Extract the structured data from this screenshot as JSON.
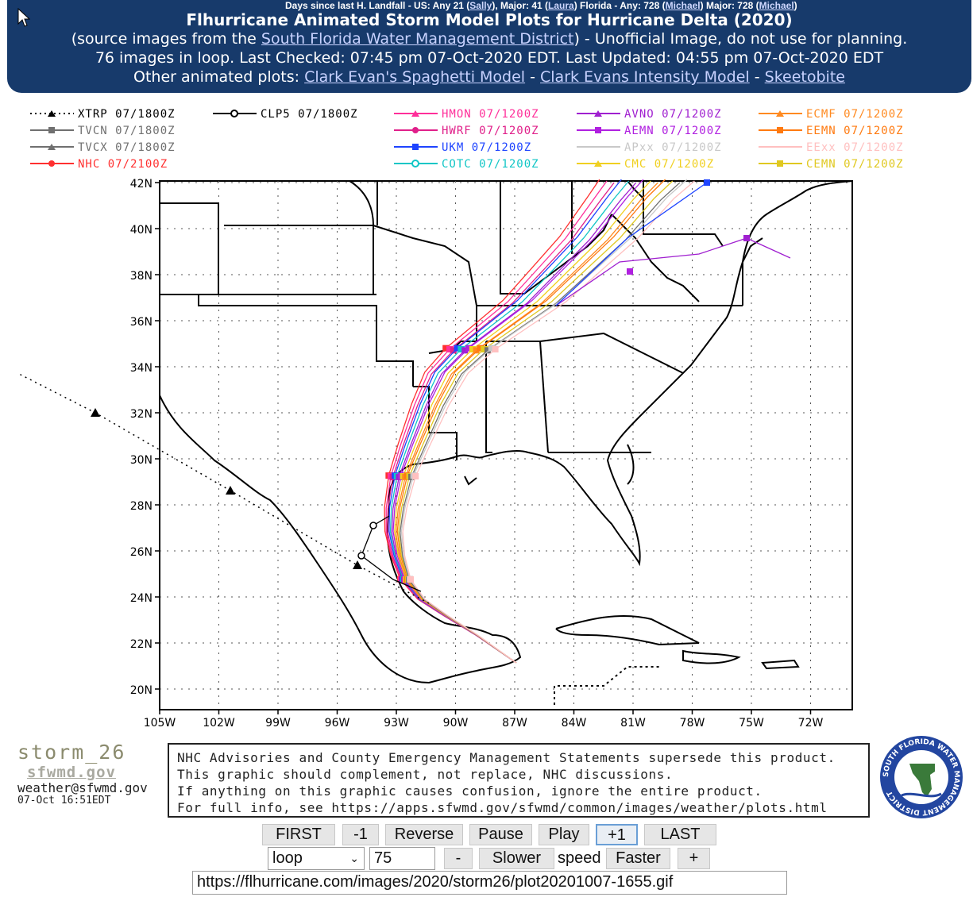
{
  "header": {
    "days_text": "Days since last H. Landfall - US: Any 21 (",
    "days_link1": "Sally",
    "days_mid1": "), Major: 41 (",
    "days_link2": "Laura",
    "days_mid2": ") Florida - Any: 728 (",
    "days_link3": "Michael",
    "days_mid3": ") Major: 728 (",
    "days_link4": "Michael",
    "days_end": ")",
    "title": "Flhurricane Animated Storm Model Plots for Hurricane Delta (2020)",
    "source_prefix": "(source images from the ",
    "source_link": "South Florida Water Management District",
    "source_suffix": ") - Unofficial Image, do not use for planning.",
    "status_line": "76 images in loop. Last Checked: 07:45 pm 07-Oct-2020 EDT. Last Updated: 04:55 pm 07-Oct-2020 EDT",
    "other_prefix": "Other animated plots: ",
    "other_link1": "Clark Evan's Spaghetti Model",
    "sep1": " - ",
    "other_link2": "Clark Evans Intensity Model",
    "sep2": " - ",
    "other_link3": "Skeetobite"
  },
  "legend": [
    {
      "label": "XTRP",
      "time": "07/1800Z",
      "color": "#000000"
    },
    {
      "label": "CLP5",
      "time": "07/1800Z",
      "color": "#000000"
    },
    {
      "label": "TVCN",
      "time": "07/1800Z",
      "color": "#707070"
    },
    {
      "label": "TVCX",
      "time": "07/1800Z",
      "color": "#707070"
    },
    {
      "label": "NHC",
      "time": "07/2100Z",
      "color": "#ff3030"
    },
    {
      "label": "HMON",
      "time": "07/1200Z",
      "color": "#ff2f9a"
    },
    {
      "label": "HWRF",
      "time": "07/1200Z",
      "color": "#e0208a"
    },
    {
      "label": "UKM",
      "time": "07/1200Z",
      "color": "#1e44ff"
    },
    {
      "label": "COTC",
      "time": "07/1200Z",
      "color": "#11c6c6"
    },
    {
      "label": "AVNO",
      "time": "07/1200Z",
      "color": "#a020d0"
    },
    {
      "label": "AEMN",
      "time": "07/1200Z",
      "color": "#b020e0"
    },
    {
      "label": "APxx",
      "time": "07/1200Z",
      "color": "#c8c8c8"
    },
    {
      "label": "CMC",
      "time": "07/1200Z",
      "color": "#f0d020"
    },
    {
      "label": "ECMF",
      "time": "07/1200Z",
      "color": "#ff8a20"
    },
    {
      "label": "EEMN",
      "time": "07/1200Z",
      "color": "#ff7a10"
    },
    {
      "label": "EExx",
      "time": "07/1200Z",
      "color": "#ffc0c0"
    },
    {
      "label": "CEMN",
      "time": "07/1200Z",
      "color": "#e0c820"
    }
  ],
  "axes": {
    "lat_labels": [
      "42N",
      "40N",
      "38N",
      "36N",
      "34N",
      "32N",
      "30N",
      "28N",
      "26N",
      "24N",
      "22N",
      "20N"
    ],
    "lon_labels": [
      "105W",
      "102W",
      "99W",
      "96W",
      "93W",
      "90W",
      "87W",
      "84W",
      "81W",
      "78W",
      "75W",
      "72W"
    ]
  },
  "branding": {
    "storm_id": "storm_26",
    "site": "sfwmd.gov",
    "email": "weather@sfwmd.gov",
    "timestamp": "07-Oct 16:51EDT"
  },
  "notice_lines": [
    "NHC Advisories and County Emergency Management Statements supersede this product.",
    "This graphic should complement, not replace, NHC discussions.",
    "If anything on this graphic causes confusion, ignore the entire product.",
    "For full info, see  https://apps.sfwmd.gov/sfwmd/common/images/weather/plots.html"
  ],
  "seal_text": "SOUTH FLORIDA WATER MANAGEMENT DISTRICT",
  "controls": {
    "first": "FIRST",
    "minus1": "-1",
    "reverse": "Reverse",
    "pause": "Pause",
    "play": "Play",
    "plus1": "+1",
    "last": "LAST",
    "mode": "loop",
    "speed_value": "75",
    "minus": "-",
    "slower": "Slower",
    "speed_label": "speed",
    "faster": "Faster",
    "plus": "+",
    "url": "https://flhurricane.com/images/2020/storm26/plot20201007-1655.gif"
  }
}
